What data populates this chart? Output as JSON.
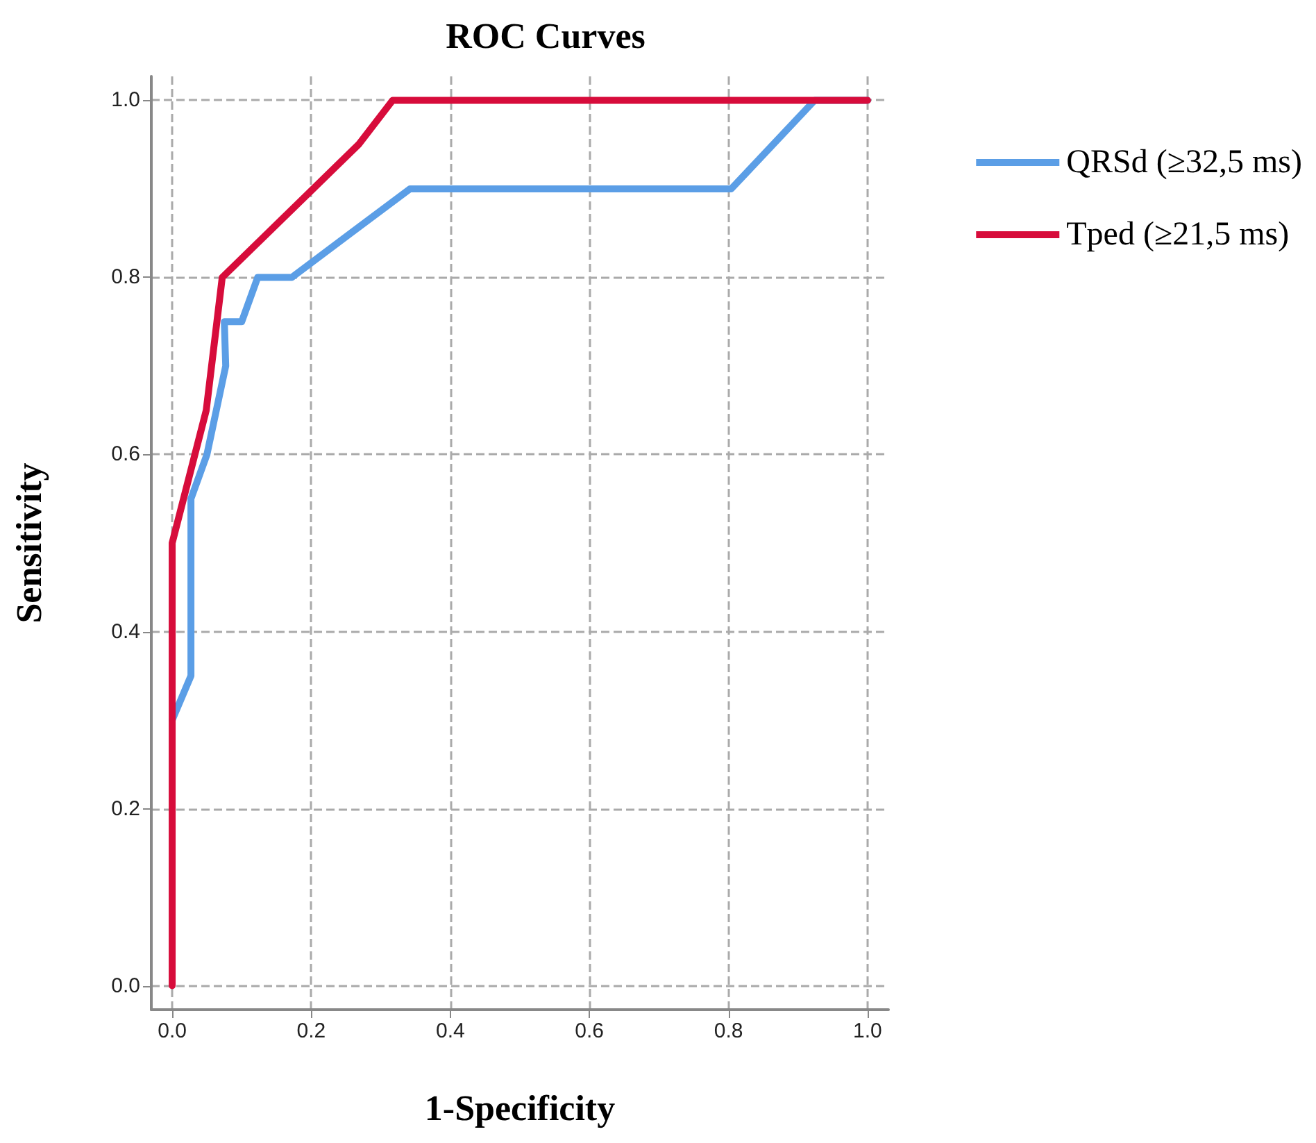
{
  "chart_data": {
    "type": "line",
    "title": "ROC Curves",
    "xlabel": "1-Specificity",
    "ylabel": "Sensitivity",
    "xlim": [
      -0.03,
      1.03
    ],
    "ylim": [
      -0.027,
      1.027
    ],
    "xticks": [
      {
        "value": 0,
        "label": "0.0"
      },
      {
        "value": 0.2,
        "label": "0.2"
      },
      {
        "value": 0.4,
        "label": "0.4"
      },
      {
        "value": 0.6,
        "label": "0.6"
      },
      {
        "value": 0.8,
        "label": "0.8"
      },
      {
        "value": 1,
        "label": "1.0"
      }
    ],
    "yticks": [
      {
        "value": 0,
        "label": "0.0"
      },
      {
        "value": 0.2,
        "label": "0.2"
      },
      {
        "value": 0.4,
        "label": "0.4"
      },
      {
        "value": 0.6,
        "label": "0.6"
      },
      {
        "value": 0.8,
        "label": "0.8"
      },
      {
        "value": 1,
        "label": "1.0"
      }
    ],
    "grid": true,
    "legend": "right",
    "marker": "none",
    "line_style": "solid",
    "series": [
      {
        "name": "QRSd (≥32,5 ms)",
        "color": "#5b9ee6",
        "x": [
          0,
          0.027,
          0.027,
          0.05,
          0.077,
          0.075,
          0.1,
          0.123,
          0.172,
          0.342,
          0.804,
          0.924,
          1
        ],
        "values": [
          0.3,
          0.35,
          0.55,
          0.6,
          0.7,
          0.75,
          0.75,
          0.8,
          0.8,
          0.9,
          0.9,
          1,
          1
        ]
      },
      {
        "name": "Tped (≥21,5 ms)",
        "color": "#d70c3b",
        "x": [
          0,
          0,
          0.049,
          0.072,
          0.268,
          0.317,
          1
        ],
        "values": [
          0,
          0.5,
          0.65,
          0.8,
          0.95,
          1,
          1
        ]
      }
    ]
  }
}
